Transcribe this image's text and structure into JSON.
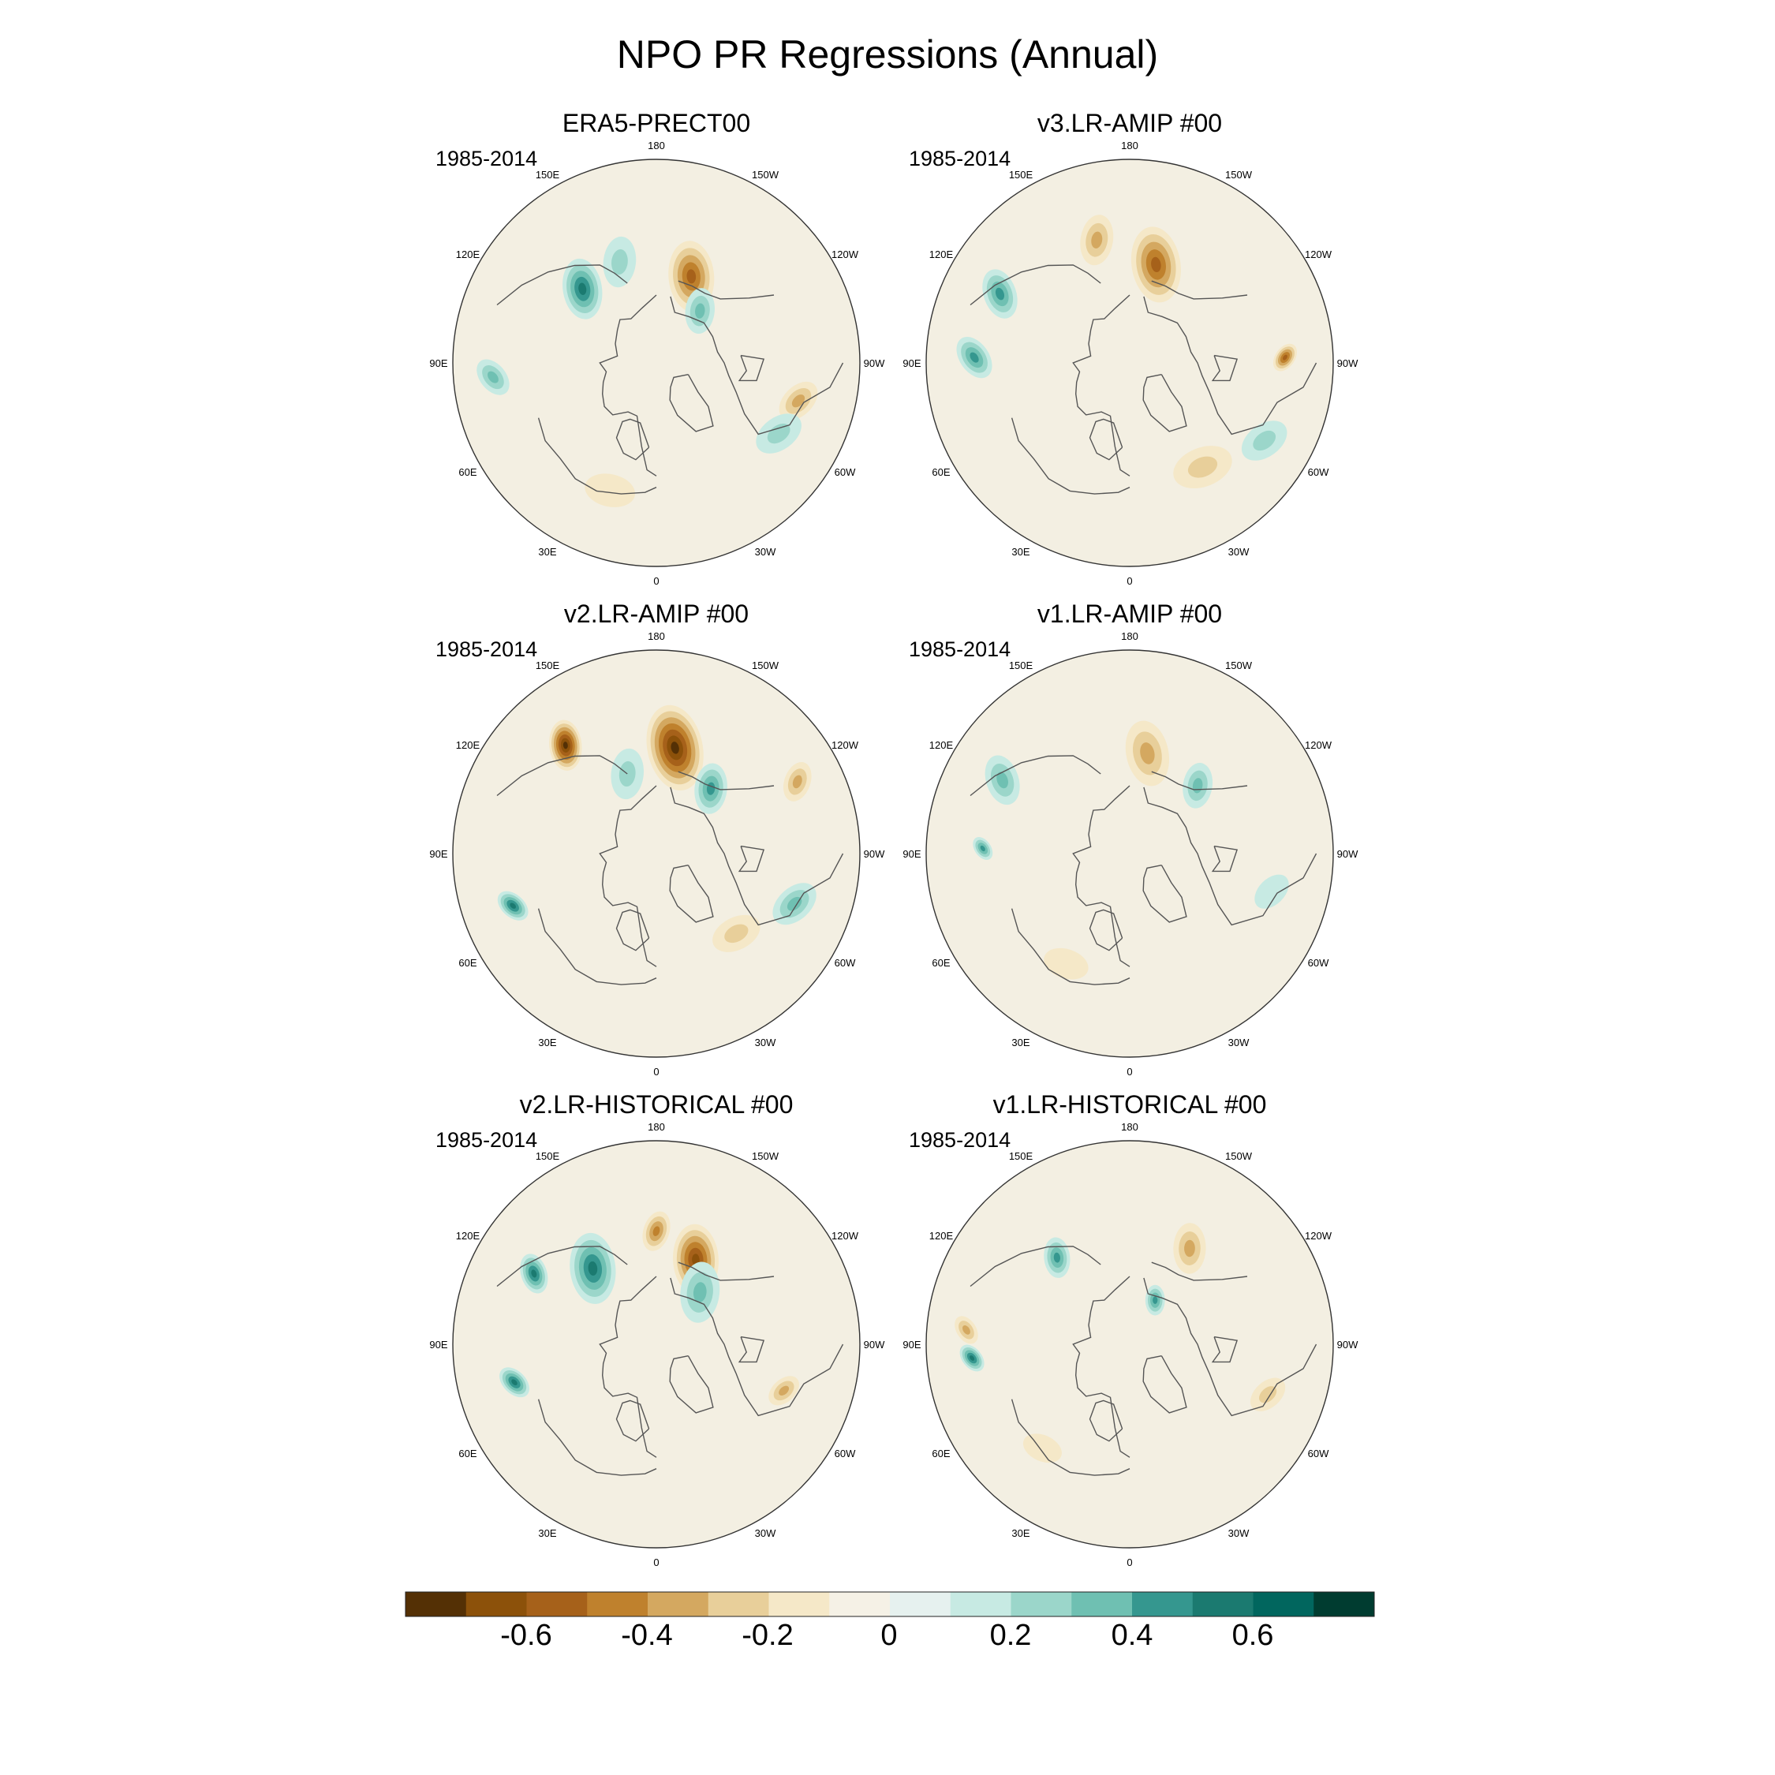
{
  "title": "NPO PR Regressions (Annual)",
  "colors": {
    "land_outline": "#555555",
    "map_border": "#333333",
    "levels": [
      "#543005",
      "#8c510a",
      "#a6611a",
      "#bf812d",
      "#d4a860",
      "#e8cf9a",
      "#f5e8c8",
      "#f5f1e6",
      "#e6f1ef",
      "#c7eae3",
      "#9bd6ca",
      "#6fc0b2",
      "#35978f",
      "#1b7a70",
      "#01665e",
      "#003c30"
    ]
  },
  "chart_data": {
    "type": "heatmap",
    "projection": "north-polar-stereographic",
    "lon_labels": [
      "180",
      "150E",
      "120E",
      "90E",
      "60E",
      "30E",
      "0",
      "30W",
      "60W",
      "90W",
      "120W",
      "150W"
    ],
    "colorbar": {
      "tick_labels": [
        "-0.6",
        "-0.4",
        "-0.2",
        "0",
        "0.2",
        "0.4",
        "0.6"
      ],
      "tick_values": [
        -0.6,
        -0.4,
        -0.2,
        0,
        0.2,
        0.4,
        0.6
      ],
      "range": [
        -0.8,
        0.8
      ],
      "n_levels": 16
    },
    "panels": [
      {
        "title": "ERA5-PRECT00",
        "period": "1985-2014",
        "features": [
          {
            "lon": -158,
            "colat": 33,
            "r": 0.14,
            "v": -0.45
          },
          {
            "lon": 135,
            "colat": 37,
            "r": 0.12,
            "v": 0.45
          },
          {
            "lon": -140,
            "colat": 24,
            "r": 0.09,
            "v": 0.3
          },
          {
            "lon": 160,
            "colat": 38,
            "r": 0.1,
            "v": 0.2
          },
          {
            "lon": 85,
            "colat": 58,
            "r": 0.08,
            "v": 0.35
          },
          {
            "lon": -75,
            "colat": 52,
            "r": 0.09,
            "v": -0.25
          },
          {
            "lon": -60,
            "colat": 50,
            "r": 0.1,
            "v": 0.2
          },
          {
            "lon": 20,
            "colat": 48,
            "r": 0.1,
            "v": -0.1
          }
        ]
      },
      {
        "title": "v3.LR-AMIP  #00",
        "period": "1985-2014",
        "features": [
          {
            "lon": -165,
            "colat": 36,
            "r": 0.15,
            "v": -0.5
          },
          {
            "lon": 165,
            "colat": 45,
            "r": 0.1,
            "v": -0.35
          },
          {
            "lon": 118,
            "colat": 52,
            "r": 0.1,
            "v": 0.4
          },
          {
            "lon": 92,
            "colat": 55,
            "r": 0.09,
            "v": 0.4
          },
          {
            "lon": -92,
            "colat": 55,
            "r": 0.06,
            "v": -0.5
          },
          {
            "lon": -35,
            "colat": 45,
            "r": 0.12,
            "v": -0.2
          },
          {
            "lon": -60,
            "colat": 55,
            "r": 0.1,
            "v": 0.2
          }
        ]
      },
      {
        "title": "v2.LR-AMIP  #00",
        "period": "1985-2014",
        "features": [
          {
            "lon": -170,
            "colat": 38,
            "r": 0.17,
            "v": -0.7
          },
          {
            "lon": 140,
            "colat": 50,
            "r": 0.1,
            "v": -0.7
          },
          {
            "lon": -140,
            "colat": 30,
            "r": 0.1,
            "v": 0.4
          },
          {
            "lon": -117,
            "colat": 56,
            "r": 0.08,
            "v": -0.3
          },
          {
            "lon": 70,
            "colat": 54,
            "r": 0.07,
            "v": 0.45
          },
          {
            "lon": -70,
            "colat": 52,
            "r": 0.1,
            "v": 0.3
          },
          {
            "lon": -45,
            "colat": 40,
            "r": 0.1,
            "v": -0.2
          },
          {
            "lon": 160,
            "colat": 30,
            "r": 0.1,
            "v": 0.2
          }
        ]
      },
      {
        "title": "v1.LR-AMIP  #00",
        "period": "1985-2014",
        "features": [
          {
            "lon": -170,
            "colat": 36,
            "r": 0.13,
            "v": -0.3
          },
          {
            "lon": -135,
            "colat": 34,
            "r": 0.09,
            "v": 0.35
          },
          {
            "lon": 120,
            "colat": 52,
            "r": 0.1,
            "v": 0.35
          },
          {
            "lon": 92,
            "colat": 52,
            "r": 0.05,
            "v": 0.4
          },
          {
            "lon": -75,
            "colat": 52,
            "r": 0.08,
            "v": 0.15
          },
          {
            "lon": 30,
            "colat": 45,
            "r": 0.09,
            "v": -0.15
          }
        ]
      },
      {
        "title": "v2.LR-HISTORICAL  #00",
        "period": "1985-2014",
        "features": [
          {
            "lon": -155,
            "colat": 33,
            "r": 0.14,
            "v": -0.55
          },
          {
            "lon": 180,
            "colat": 40,
            "r": 0.08,
            "v": -0.4
          },
          {
            "lon": 140,
            "colat": 35,
            "r": 0.14,
            "v": 0.45
          },
          {
            "lon": 120,
            "colat": 50,
            "r": 0.08,
            "v": 0.45
          },
          {
            "lon": 75,
            "colat": 52,
            "r": 0.07,
            "v": 0.45
          },
          {
            "lon": -70,
            "colat": 48,
            "r": 0.07,
            "v": -0.35
          },
          {
            "lon": -140,
            "colat": 24,
            "r": 0.12,
            "v": 0.25
          }
        ]
      },
      {
        "title": "v1.LR-HISTORICAL  #00",
        "period": "1985-2014",
        "features": [
          {
            "lon": -148,
            "colat": 40,
            "r": 0.1,
            "v": -0.3
          },
          {
            "lon": 140,
            "colat": 40,
            "r": 0.08,
            "v": 0.4
          },
          {
            "lon": -150,
            "colat": 18,
            "r": 0.06,
            "v": 0.4
          },
          {
            "lon": 85,
            "colat": 56,
            "r": 0.06,
            "v": 0.5
          },
          {
            "lon": 95,
            "colat": 58,
            "r": 0.06,
            "v": -0.3
          },
          {
            "lon": -70,
            "colat": 52,
            "r": 0.08,
            "v": -0.2
          },
          {
            "lon": 40,
            "colat": 48,
            "r": 0.08,
            "v": -0.15
          }
        ]
      }
    ]
  }
}
